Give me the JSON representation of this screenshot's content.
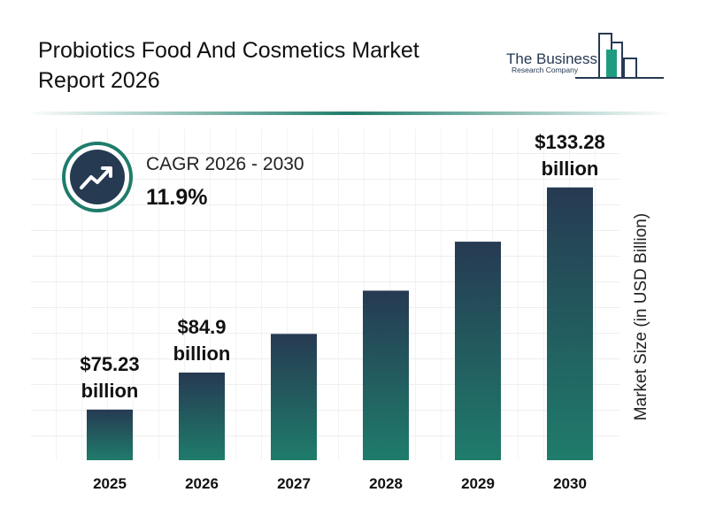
{
  "chart_data": {
    "type": "bar",
    "title": "Probiotics Food And Cosmetics Market Report 2026",
    "logo_line1": "The Business",
    "logo_line2": "Research Company",
    "cagr_label": "CAGR 2026 - 2030",
    "cagr_value": "11.9%",
    "y_label": "Market Size (in USD Billion)",
    "categories": [
      "2025",
      "2026",
      "2027",
      "2028",
      "2029",
      "2030"
    ],
    "values": [
      75.23,
      84.9,
      95.0,
      106.3,
      119.1,
      133.28
    ],
    "value_labels": [
      "$75.23 billion",
      "$84.9 billion",
      null,
      null,
      null,
      "$133.28 billion"
    ],
    "color_top": "#263a52",
    "color_bottom": "#1f7c6b",
    "ylim": [
      62,
      136
    ]
  }
}
